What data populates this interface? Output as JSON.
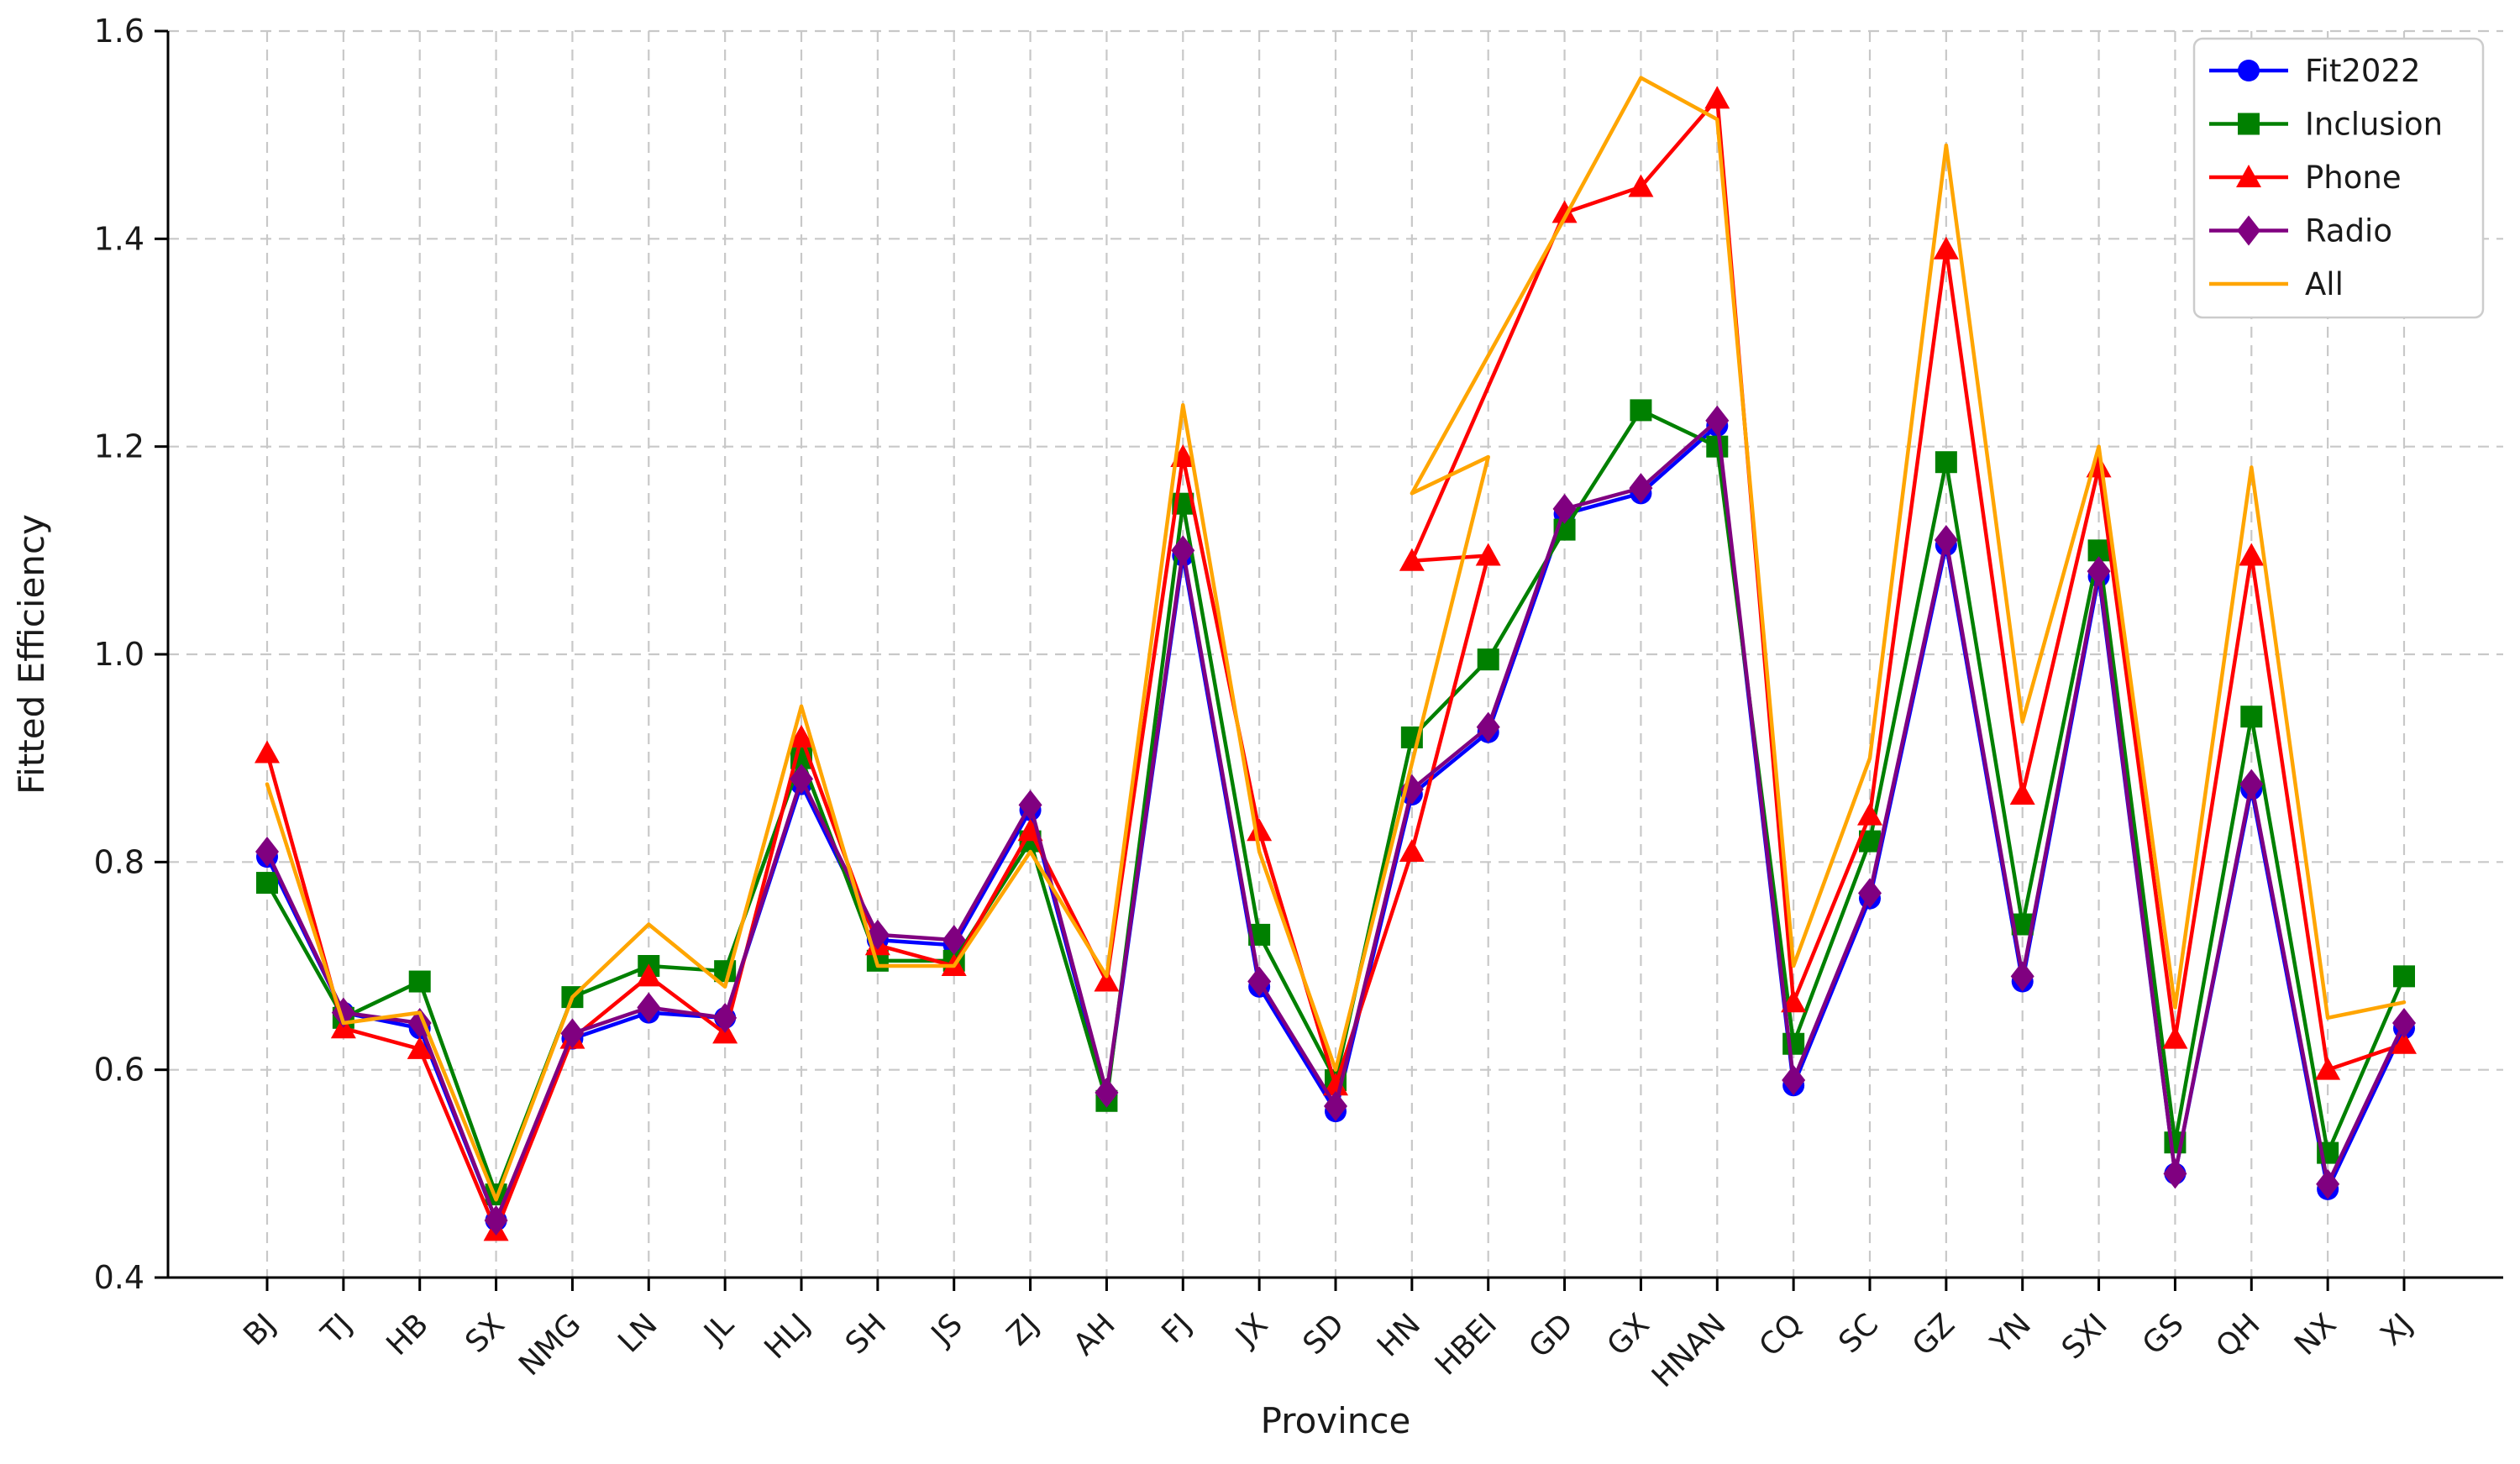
{
  "chart_data": {
    "type": "line",
    "title": "",
    "xlabel": "Province",
    "ylabel": "Fitted Efficiency",
    "ylim": [
      0.4,
      1.6
    ],
    "yticks": [
      0.4,
      0.6,
      0.8,
      1.0,
      1.2,
      1.4,
      1.6
    ],
    "grid": "dashed-both-axes",
    "legend_position": "upper right",
    "categories": [
      "BJ",
      "TJ",
      "HB",
      "SX",
      "NMG",
      "LN",
      "JL",
      "HLJ",
      "SH",
      "JS",
      "ZJ",
      "AH",
      "FJ",
      "JX",
      "SD",
      "HN",
      "HBEI",
      "GD",
      "GX",
      "HNAN",
      "CQ",
      "SC",
      "GZ",
      "YN",
      "SXI",
      "GS",
      "QH",
      "NX",
      "XJ"
    ],
    "series": [
      {
        "name": "Fit2022",
        "color": "#0000ff",
        "marker": "circle",
        "points": [
          [
            0,
            0.805
          ],
          [
            1,
            0.655
          ],
          [
            2,
            0.64
          ],
          [
            3,
            0.455
          ],
          [
            4,
            0.63
          ],
          [
            5,
            0.655
          ],
          [
            6,
            0.65
          ],
          [
            7,
            0.875
          ],
          [
            8,
            0.725
          ],
          [
            9,
            0.72
          ],
          [
            10,
            0.85
          ],
          [
            11,
            0.575
          ],
          [
            12,
            1.095
          ],
          [
            13,
            0.68
          ],
          [
            14,
            0.56
          ],
          [
            15,
            0.865
          ],
          [
            16,
            0.925
          ],
          [
            17,
            1.135
          ],
          [
            18,
            1.155
          ],
          [
            19,
            1.22
          ],
          [
            20,
            0.585
          ],
          [
            21,
            0.765
          ],
          [
            22,
            1.105
          ],
          [
            23,
            0.685
          ],
          [
            24,
            1.075
          ],
          [
            25,
            0.5
          ],
          [
            26,
            0.87
          ],
          [
            27,
            0.485
          ],
          [
            28,
            0.64
          ]
        ]
      },
      {
        "name": "Inclusion",
        "color": "#008000",
        "marker": "square",
        "points": [
          [
            0,
            0.78
          ],
          [
            1,
            0.65
          ],
          [
            2,
            0.685
          ],
          [
            3,
            0.48
          ],
          [
            4,
            0.67
          ],
          [
            5,
            0.7
          ],
          [
            6,
            0.695
          ],
          [
            7,
            0.9
          ],
          [
            8,
            0.705
          ],
          [
            9,
            0.705
          ],
          [
            10,
            0.82
          ],
          [
            11,
            0.57
          ],
          [
            12,
            1.145
          ],
          [
            13,
            0.73
          ],
          [
            14,
            0.59
          ],
          [
            15,
            0.92
          ],
          [
            16,
            0.995
          ],
          [
            17,
            1.12
          ],
          [
            18,
            1.235
          ],
          [
            19,
            1.2
          ],
          [
            20,
            0.625
          ],
          [
            21,
            0.82
          ],
          [
            22,
            1.185
          ],
          [
            23,
            0.74
          ],
          [
            24,
            1.1
          ],
          [
            25,
            0.53
          ],
          [
            26,
            0.94
          ],
          [
            27,
            0.52
          ],
          [
            28,
            0.69
          ]
        ]
      },
      {
        "name": "Phone",
        "color": "#ff0000",
        "marker": "triangle",
        "points": [
          [
            0,
            0.905
          ],
          [
            1,
            0.64
          ],
          [
            2,
            0.62
          ],
          [
            3,
            0.445
          ],
          [
            4,
            0.63
          ],
          [
            5,
            0.69
          ],
          [
            6,
            0.635
          ],
          [
            7,
            0.92
          ],
          [
            8,
            0.72
          ],
          [
            9,
            0.7
          ],
          [
            10,
            0.83
          ],
          [
            11,
            0.685
          ],
          [
            12,
            1.19
          ],
          [
            13,
            0.83
          ],
          [
            14,
            0.585
          ],
          [
            15,
            0.81
          ],
          [
            16,
            1.095
          ],
          [
            15,
            1.09
          ],
          [
            17,
            1.425
          ],
          [
            18,
            1.45
          ],
          [
            19,
            1.535
          ],
          [
            20,
            0.665
          ],
          [
            21,
            0.845
          ],
          [
            22,
            1.39
          ],
          [
            23,
            0.865
          ],
          [
            24,
            1.18
          ],
          [
            25,
            0.63
          ],
          [
            26,
            1.095
          ],
          [
            27,
            0.6
          ],
          [
            28,
            0.625
          ]
        ]
      },
      {
        "name": "Radio",
        "color": "#800080",
        "marker": "diamond",
        "points": [
          [
            0,
            0.81
          ],
          [
            1,
            0.655
          ],
          [
            2,
            0.645
          ],
          [
            3,
            0.455
          ],
          [
            4,
            0.635
          ],
          [
            5,
            0.66
          ],
          [
            6,
            0.65
          ],
          [
            7,
            0.88
          ],
          [
            8,
            0.73
          ],
          [
            9,
            0.725
          ],
          [
            10,
            0.855
          ],
          [
            11,
            0.578
          ],
          [
            12,
            1.1
          ],
          [
            13,
            0.685
          ],
          [
            14,
            0.565
          ],
          [
            15,
            0.87
          ],
          [
            16,
            0.93
          ],
          [
            17,
            1.14
          ],
          [
            18,
            1.16
          ],
          [
            19,
            1.225
          ],
          [
            20,
            0.59
          ],
          [
            21,
            0.77
          ],
          [
            22,
            1.11
          ],
          [
            23,
            0.69
          ],
          [
            24,
            1.08
          ],
          [
            25,
            0.5
          ],
          [
            26,
            0.875
          ],
          [
            27,
            0.49
          ],
          [
            28,
            0.645
          ]
        ]
      },
      {
        "name": "All",
        "color": "#ffa500",
        "marker": "none",
        "points": [
          [
            0,
            0.875
          ],
          [
            1,
            0.645
          ],
          [
            2,
            0.655
          ],
          [
            3,
            0.475
          ],
          [
            4,
            0.67
          ],
          [
            5,
            0.74
          ],
          [
            6,
            0.68
          ],
          [
            7,
            0.95
          ],
          [
            8,
            0.7
          ],
          [
            9,
            0.7
          ],
          [
            10,
            0.81
          ],
          [
            11,
            0.69
          ],
          [
            12,
            1.24
          ],
          [
            13,
            0.81
          ],
          [
            14,
            0.6
          ],
          [
            16,
            1.19
          ],
          [
            15,
            1.155
          ],
          [
            17,
            1.42
          ],
          [
            18,
            1.555
          ],
          [
            19,
            1.515
          ],
          [
            20,
            0.7
          ],
          [
            21,
            0.9
          ],
          [
            22,
            1.49
          ],
          [
            23,
            0.935
          ],
          [
            24,
            1.2
          ],
          [
            25,
            0.66
          ],
          [
            26,
            1.18
          ],
          [
            27,
            0.65
          ],
          [
            28,
            0.665
          ]
        ]
      }
    ],
    "legend_labels": [
      "Fit2022",
      "Inclusion",
      "Phone",
      "Radio",
      "All"
    ]
  },
  "colors": {
    "grid": "#c8c8c8",
    "spine": "#000000",
    "tick_label": "#262626",
    "legend_border": "#cccccc",
    "background": "#ffffff"
  }
}
